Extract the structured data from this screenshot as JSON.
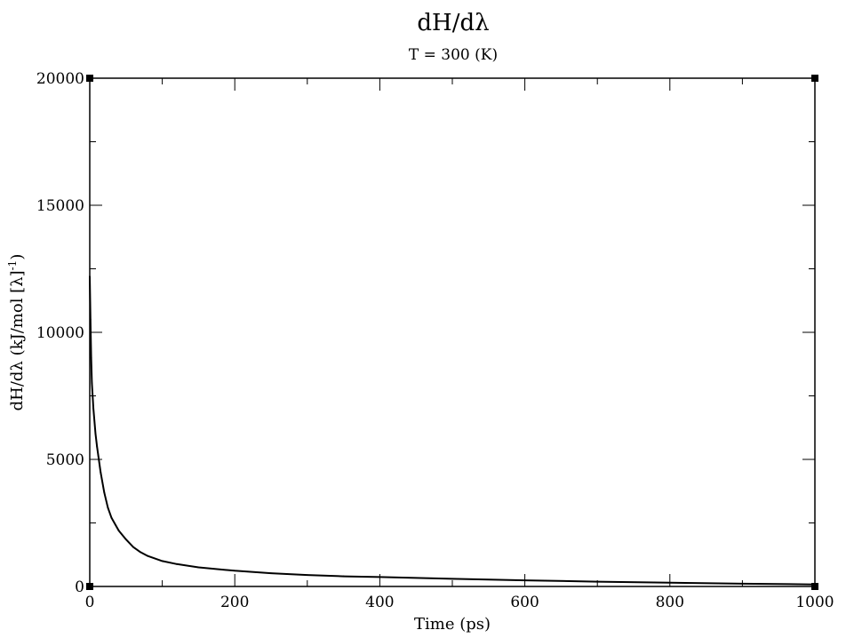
{
  "chart_data": {
    "type": "line",
    "title": "dH/dλ",
    "subtitle": "T = 300 (K)",
    "xlabel": "Time (ps)",
    "ylabel": "dH/dλ (kJ/mol [λ]",
    "ylabel_superscript": "-1",
    "ylabel_suffix": ")",
    "xlim": [
      0,
      1000
    ],
    "ylim": [
      0,
      20000
    ],
    "x_ticks": [
      0,
      200,
      400,
      600,
      800,
      1000
    ],
    "y_ticks": [
      0,
      5000,
      10000,
      15000,
      20000
    ],
    "x_tick_labels": [
      "0",
      "200",
      "400",
      "600",
      "800",
      "1000"
    ],
    "y_tick_labels": [
      "0",
      "5000",
      "10000",
      "15000",
      "20000"
    ],
    "grid": false,
    "legend": "none",
    "line_color": "#000000",
    "series": [
      {
        "x": [
          0,
          1,
          2,
          3,
          5,
          8,
          10,
          15,
          20,
          25,
          30,
          40,
          50,
          60,
          70,
          80,
          100,
          120,
          150,
          200,
          250,
          300,
          350,
          400,
          500,
          600,
          700,
          800,
          900,
          1000
        ],
        "values": [
          12200,
          10500,
          9000,
          8000,
          7000,
          6000,
          5500,
          4500,
          3700,
          3100,
          2700,
          2200,
          1850,
          1550,
          1350,
          1200,
          1000,
          880,
          750,
          620,
          520,
          450,
          400,
          370,
          300,
          240,
          190,
          150,
          110,
          80
        ]
      }
    ]
  }
}
